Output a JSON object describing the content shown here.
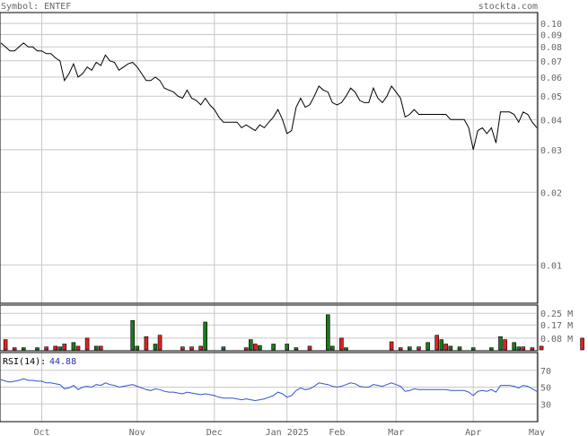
{
  "header": {
    "symbol_label": "Symbol: ENTEF",
    "site": "stockta.com"
  },
  "colors": {
    "grid": "#c8c8c8",
    "frame": "#000000",
    "up": "#1a7a1a",
    "down": "#dd2222",
    "rsi_line": "#3355cc",
    "rsi_value": "#2233aa",
    "text": "#666666"
  },
  "chart_data": [
    {
      "type": "line",
      "scale": "log",
      "ylim": [
        0.007,
        0.11
      ],
      "yticks": [
        {
          "v": 0.1,
          "label": "0.10"
        },
        {
          "v": 0.09,
          "label": "0.09"
        },
        {
          "v": 0.08,
          "label": "0.08"
        },
        {
          "v": 0.07,
          "label": "0.07"
        },
        {
          "v": 0.06,
          "label": "0.06"
        },
        {
          "v": 0.05,
          "label": "0.05"
        },
        {
          "v": 0.04,
          "label": "0.04"
        },
        {
          "v": 0.03,
          "label": "0.03"
        },
        {
          "v": 0.02,
          "label": "0.02"
        },
        {
          "v": 0.01,
          "label": "0.01"
        }
      ],
      "x_labels": [
        "Oct",
        "Nov",
        "Dec",
        "Jan 2025",
        "Feb",
        "Mar",
        "Apr",
        "May"
      ],
      "x_label_index": [
        9,
        30,
        47,
        63,
        74,
        87,
        104,
        118
      ],
      "close": [
        0.083,
        0.08,
        0.077,
        0.077,
        0.08,
        0.083,
        0.08,
        0.08,
        0.077,
        0.077,
        0.075,
        0.075,
        0.072,
        0.07,
        0.058,
        0.062,
        0.068,
        0.06,
        0.062,
        0.066,
        0.064,
        0.069,
        0.067,
        0.074,
        0.07,
        0.069,
        0.064,
        0.066,
        0.068,
        0.069,
        0.066,
        0.062,
        0.058,
        0.058,
        0.06,
        0.058,
        0.054,
        0.053,
        0.052,
        0.05,
        0.049,
        0.053,
        0.049,
        0.048,
        0.046,
        0.049,
        0.046,
        0.044,
        0.041,
        0.039,
        0.039,
        0.039,
        0.039,
        0.037,
        0.038,
        0.037,
        0.036,
        0.038,
        0.037,
        0.039,
        0.041,
        0.044,
        0.04,
        0.035,
        0.036,
        0.045,
        0.049,
        0.045,
        0.046,
        0.05,
        0.055,
        0.053,
        0.052,
        0.047,
        0.046,
        0.047,
        0.05,
        0.054,
        0.052,
        0.048,
        0.047,
        0.047,
        0.054,
        0.049,
        0.047,
        0.05,
        0.055,
        0.052,
        0.049,
        0.041,
        0.042,
        0.044,
        0.042,
        0.042,
        0.042,
        0.042,
        0.042,
        0.042,
        0.042,
        0.04,
        0.04,
        0.04,
        0.04,
        0.037,
        0.03,
        0.036,
        0.037,
        0.035,
        0.037,
        0.032,
        0.043,
        0.043,
        0.043,
        0.042,
        0.039,
        0.043,
        0.042,
        0.039,
        0.037
      ],
      "volume_labels": [
        "0.25 M",
        "0.17 M",
        "0.08 M"
      ],
      "volume_ticks": [
        0.25,
        0.17,
        0.08
      ],
      "volume_max": 0.3,
      "volume": [
        {
          "i": 1,
          "v": 0.07,
          "up": false
        },
        {
          "i": 3,
          "v": 0.015,
          "up": false
        },
        {
          "i": 5,
          "v": 0.015,
          "up": true
        },
        {
          "i": 8,
          "v": 0.015,
          "up": true
        },
        {
          "i": 10,
          "v": 0.02,
          "up": false
        },
        {
          "i": 12,
          "v": 0.025,
          "up": false
        },
        {
          "i": 13,
          "v": 0.02,
          "up": true
        },
        {
          "i": 14,
          "v": 0.04,
          "up": false
        },
        {
          "i": 16,
          "v": 0.05,
          "up": true
        },
        {
          "i": 17,
          "v": 0.025,
          "up": false
        },
        {
          "i": 19,
          "v": 0.08,
          "up": false
        },
        {
          "i": 21,
          "v": 0.025,
          "up": true
        },
        {
          "i": 22,
          "v": 0.025,
          "up": false
        },
        {
          "i": 29,
          "v": 0.2,
          "up": true
        },
        {
          "i": 30,
          "v": 0.025,
          "up": true
        },
        {
          "i": 32,
          "v": 0.09,
          "up": false
        },
        {
          "i": 34,
          "v": 0.04,
          "up": true
        },
        {
          "i": 35,
          "v": 0.1,
          "up": false
        },
        {
          "i": 40,
          "v": 0.02,
          "up": false
        },
        {
          "i": 42,
          "v": 0.02,
          "up": false
        },
        {
          "i": 44,
          "v": 0.025,
          "up": false
        },
        {
          "i": 45,
          "v": 0.19,
          "up": true
        },
        {
          "i": 49,
          "v": 0.02,
          "up": true
        },
        {
          "i": 54,
          "v": 0.015,
          "up": false
        },
        {
          "i": 55,
          "v": 0.07,
          "up": true
        },
        {
          "i": 56,
          "v": 0.04,
          "up": false
        },
        {
          "i": 57,
          "v": 0.03,
          "up": true
        },
        {
          "i": 60,
          "v": 0.04,
          "up": true
        },
        {
          "i": 63,
          "v": 0.04,
          "up": true
        },
        {
          "i": 65,
          "v": 0.015,
          "up": true
        },
        {
          "i": 68,
          "v": 0.025,
          "up": false
        },
        {
          "i": 72,
          "v": 0.24,
          "up": true
        },
        {
          "i": 73,
          "v": 0.025,
          "up": true
        },
        {
          "i": 75,
          "v": 0.08,
          "up": false
        },
        {
          "i": 76,
          "v": 0.015,
          "up": true
        },
        {
          "i": 86,
          "v": 0.055,
          "up": false
        },
        {
          "i": 88,
          "v": 0.015,
          "up": false
        },
        {
          "i": 90,
          "v": 0.02,
          "up": true
        },
        {
          "i": 92,
          "v": 0.02,
          "up": false
        },
        {
          "i": 94,
          "v": 0.05,
          "up": true
        },
        {
          "i": 96,
          "v": 0.1,
          "up": false
        },
        {
          "i": 97,
          "v": 0.07,
          "up": true
        },
        {
          "i": 98,
          "v": 0.04,
          "up": false
        },
        {
          "i": 99,
          "v": 0.025,
          "up": true
        },
        {
          "i": 101,
          "v": 0.02,
          "up": true
        },
        {
          "i": 104,
          "v": 0.015,
          "up": true
        },
        {
          "i": 108,
          "v": 0.015,
          "up": true
        },
        {
          "i": 110,
          "v": 0.09,
          "up": true
        },
        {
          "i": 111,
          "v": 0.07,
          "up": false
        },
        {
          "i": 113,
          "v": 0.05,
          "up": true
        },
        {
          "i": 114,
          "v": 0.02,
          "up": true
        },
        {
          "i": 115,
          "v": 0.02,
          "up": false
        },
        {
          "i": 117,
          "v": 0.015,
          "up": false
        },
        {
          "i": 119,
          "v": 0.025,
          "up": false
        },
        {
          "i": 128,
          "v": 0.08,
          "up": false
        }
      ],
      "rsi_label": "RSI(14):",
      "rsi_value": "44.88",
      "rsi_ticks": [
        70,
        50,
        30
      ],
      "rsi_range": [
        10,
        90
      ],
      "rsi": [
        59,
        57,
        56,
        57,
        58,
        60,
        58,
        58,
        57,
        57,
        55,
        55,
        54,
        53,
        48,
        49,
        52,
        47,
        50,
        51,
        50,
        53,
        52,
        55,
        53,
        52,
        50,
        51,
        52,
        53,
        51,
        49,
        47,
        46,
        48,
        47,
        45,
        44,
        44,
        43,
        42,
        44,
        43,
        42,
        41,
        42,
        41,
        40,
        38,
        37,
        37,
        37,
        36,
        35,
        36,
        35,
        34,
        35,
        36,
        38,
        40,
        44,
        42,
        38,
        40,
        46,
        49,
        47,
        48,
        51,
        55,
        54,
        53,
        51,
        50,
        51,
        53,
        55,
        54,
        51,
        50,
        50,
        53,
        52,
        51,
        53,
        55,
        53,
        51,
        45,
        46,
        48,
        47,
        47,
        47,
        47,
        47,
        47,
        47,
        46,
        46,
        46,
        46,
        44,
        40,
        45,
        46,
        45,
        47,
        44,
        52,
        52,
        52,
        51,
        49,
        52,
        51,
        48,
        44.88
      ]
    }
  ]
}
